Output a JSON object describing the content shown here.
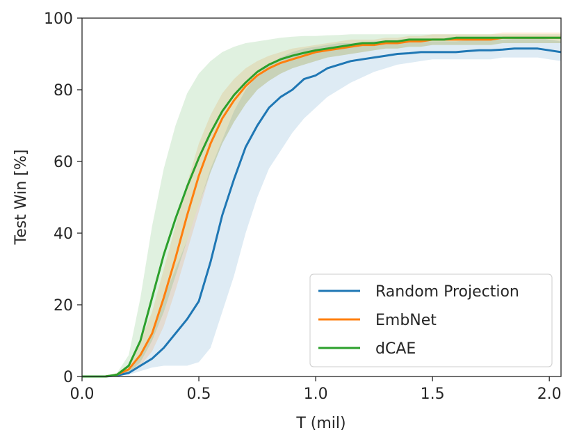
{
  "chart_data": {
    "type": "line",
    "title": "",
    "xlabel": "T (mil)",
    "ylabel": "Test Win [%]",
    "xlim": [
      0.0,
      2.05
    ],
    "ylim": [
      0,
      100
    ],
    "xticks": [
      0.0,
      0.5,
      1.0,
      1.5,
      2.0
    ],
    "xtick_labels": [
      "0.0",
      "0.5",
      "1.0",
      "1.5",
      "2.0"
    ],
    "yticks": [
      0,
      20,
      40,
      60,
      80,
      100
    ],
    "ytick_labels": [
      "0",
      "20",
      "40",
      "60",
      "80",
      "100"
    ],
    "grid": false,
    "legend_position": "lower-right",
    "x": [
      0.0,
      0.1,
      0.15,
      0.2,
      0.25,
      0.3,
      0.35,
      0.4,
      0.45,
      0.5,
      0.55,
      0.6,
      0.65,
      0.7,
      0.75,
      0.8,
      0.85,
      0.9,
      0.95,
      1.0,
      1.05,
      1.1,
      1.15,
      1.2,
      1.25,
      1.3,
      1.35,
      1.4,
      1.45,
      1.5,
      1.55,
      1.6,
      1.65,
      1.7,
      1.75,
      1.8,
      1.85,
      1.9,
      1.95,
      2.0,
      2.05
    ],
    "series": [
      {
        "name": "Random Projection",
        "color": "#1f77b4",
        "values": [
          0,
          0,
          0.3,
          1,
          3,
          5,
          8,
          12,
          16,
          21,
          32,
          45,
          55,
          64,
          70,
          75,
          78,
          80,
          83,
          84,
          86,
          87,
          88,
          88.5,
          89,
          89.5,
          90,
          90.2,
          90.5,
          90.5,
          90.5,
          90.5,
          90.8,
          91,
          91,
          91.2,
          91.5,
          91.5,
          91.5,
          91,
          90.5
        ],
        "band_lower": [
          0,
          0,
          0.2,
          0.5,
          1.5,
          2.5,
          3,
          3,
          3,
          4,
          8,
          18,
          28,
          40,
          50,
          58,
          63,
          68,
          72,
          75,
          78,
          80,
          82,
          83.5,
          85,
          86,
          87,
          87.5,
          88,
          88.5,
          88.5,
          88.5,
          88.5,
          88.5,
          88.5,
          89,
          89,
          89,
          89,
          88.5,
          88
        ],
        "band_upper": [
          0,
          0,
          0.5,
          2,
          6,
          12,
          22,
          30,
          38,
          48,
          58,
          66,
          74,
          80,
          84,
          87,
          89,
          90.5,
          91.5,
          92,
          92.5,
          93,
          93,
          93.2,
          93.5,
          93.5,
          93.5,
          93.5,
          93.5,
          93.5,
          93.5,
          93.5,
          93.8,
          94,
          94,
          94,
          94.2,
          94.5,
          94.5,
          94,
          93.5
        ]
      },
      {
        "name": "EmbNet",
        "color": "#ff7f0e",
        "values": [
          0,
          0,
          0.5,
          2,
          6,
          12,
          22,
          33,
          45,
          56,
          65,
          72,
          77,
          81,
          84,
          86,
          87.5,
          88.5,
          89.5,
          90.5,
          91,
          91.5,
          92,
          92.5,
          92.5,
          93,
          93,
          93.5,
          93.5,
          94,
          94,
          94,
          94,
          94,
          94,
          94.5,
          94.5,
          94.5,
          94.5,
          94.5,
          94.5
        ],
        "band_lower": [
          0,
          0,
          0.2,
          1,
          3,
          7,
          14,
          24,
          35,
          46,
          57,
          65,
          71,
          76,
          80,
          82.5,
          84.5,
          86,
          87,
          88,
          89,
          89.5,
          90,
          90.5,
          91,
          91.5,
          91.5,
          92,
          92,
          92.5,
          92.5,
          92.5,
          92.5,
          92.5,
          92.5,
          93,
          93,
          93,
          93,
          93,
          93
        ],
        "band_upper": [
          0,
          0,
          1,
          3,
          10,
          18,
          30,
          42,
          54,
          65,
          73,
          79,
          83,
          86,
          88,
          89.5,
          90.5,
          91.5,
          92,
          92.5,
          93,
          93.5,
          94,
          94,
          94,
          94.5,
          94.5,
          95,
          95,
          95.5,
          95.5,
          95.5,
          95.5,
          95.5,
          95.5,
          96,
          96,
          96,
          96,
          96,
          96
        ]
      },
      {
        "name": "dCAE",
        "color": "#2ca02c",
        "values": [
          0,
          0,
          0.5,
          3,
          10,
          22,
          34,
          44,
          53,
          61,
          68,
          74,
          78.5,
          82,
          85,
          87,
          88.5,
          89.5,
          90.3,
          91,
          91.5,
          92,
          92.5,
          93,
          93,
          93.5,
          93.5,
          94,
          94,
          94,
          94,
          94.5,
          94.5,
          94.5,
          94.5,
          94.5,
          94.5,
          94.5,
          94.5,
          94.5,
          94.5
        ],
        "band_lower": [
          0,
          0,
          0.2,
          1,
          4,
          10,
          18,
          28,
          38,
          48,
          57,
          65,
          71,
          76,
          80,
          82.5,
          84.5,
          86,
          87,
          88,
          89,
          89.5,
          90,
          90.5,
          91,
          91.5,
          91.5,
          92,
          92,
          92.5,
          92.5,
          92.5,
          92.5,
          92.5,
          92.5,
          93,
          93,
          93,
          93,
          93,
          93
        ],
        "band_upper": [
          0,
          0,
          1,
          6,
          22,
          42,
          58,
          70,
          79,
          84.5,
          88,
          90.5,
          92,
          93,
          93.5,
          94,
          94.5,
          94.8,
          95,
          95,
          95.2,
          95.3,
          95.5,
          95.5,
          95.5,
          95.5,
          95.5,
          95.5,
          95.5,
          95.5,
          95.5,
          95.5,
          95.5,
          95.5,
          95.5,
          95.5,
          95.5,
          95.5,
          95.5,
          95.5,
          95.5
        ]
      }
    ]
  }
}
